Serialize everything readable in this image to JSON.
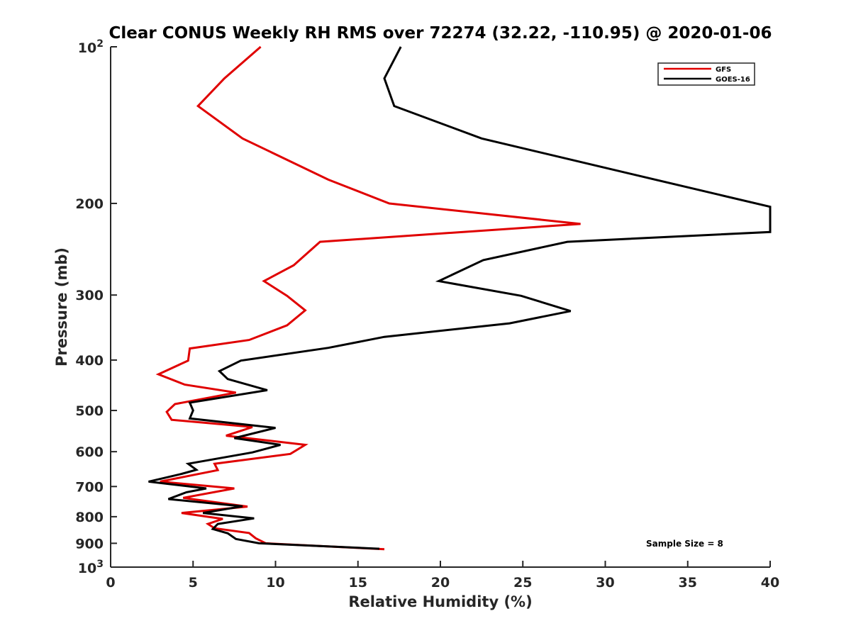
{
  "chart_data": {
    "type": "line",
    "title": "Clear CONUS Weekly RH RMS over 72274 (32.22, -110.95) @ 2020-01-06",
    "xlabel": "Relative Humidity (%)",
    "ylabel": "Pressure (mb)",
    "xlim": [
      0,
      40
    ],
    "ylim": [
      100,
      1000
    ],
    "yscale": "log",
    "y_reversed": true,
    "xticks": [
      0,
      5,
      10,
      15,
      20,
      25,
      30,
      35,
      40
    ],
    "yticks": [
      {
        "value": 100,
        "base": "10",
        "exp": "2"
      },
      {
        "value": 200,
        "label": "200"
      },
      {
        "value": 300,
        "label": "300"
      },
      {
        "value": 400,
        "label": "400"
      },
      {
        "value": 500,
        "label": "500"
      },
      {
        "value": 600,
        "label": "600"
      },
      {
        "value": 700,
        "label": "700"
      },
      {
        "value": 800,
        "label": "800"
      },
      {
        "value": 900,
        "label": "900"
      },
      {
        "value": 1000,
        "base": "10",
        "exp": "3"
      }
    ],
    "grid": false,
    "legend_position": "top-right",
    "annotation": "Sample Size = 8",
    "series": [
      {
        "name": "GFS",
        "color": "#e00000",
        "points": [
          [
            9.1,
            100
          ],
          [
            6.9,
            115
          ],
          [
            5.3,
            130
          ],
          [
            8.0,
            150
          ],
          [
            13.2,
            180
          ],
          [
            16.9,
            200
          ],
          [
            28.5,
            219
          ],
          [
            12.7,
            237
          ],
          [
            11.1,
            263
          ],
          [
            9.3,
            282
          ],
          [
            10.7,
            301
          ],
          [
            11.8,
            321
          ],
          [
            10.7,
            343
          ],
          [
            8.4,
            366
          ],
          [
            4.8,
            380
          ],
          [
            4.7,
            401
          ],
          [
            2.9,
            426
          ],
          [
            4.5,
            446
          ],
          [
            7.6,
            462
          ],
          [
            3.9,
            486
          ],
          [
            3.4,
            503
          ],
          [
            3.7,
            521
          ],
          [
            8.6,
            538
          ],
          [
            7.0,
            559
          ],
          [
            11.8,
            582
          ],
          [
            10.9,
            606
          ],
          [
            6.3,
            633
          ],
          [
            6.5,
            651
          ],
          [
            3.0,
            685
          ],
          [
            7.5,
            706
          ],
          [
            4.4,
            736
          ],
          [
            8.3,
            765
          ],
          [
            4.3,
            787
          ],
          [
            6.8,
            808
          ],
          [
            5.9,
            826
          ],
          [
            6.3,
            842
          ],
          [
            8.4,
            860
          ],
          [
            8.8,
            880
          ],
          [
            9.4,
            900
          ],
          [
            16.6,
            924
          ]
        ]
      },
      {
        "name": "GOES-16",
        "color": "#000000",
        "points": [
          [
            17.6,
            100
          ],
          [
            16.6,
            115
          ],
          [
            17.2,
            130
          ],
          [
            22.5,
            150
          ],
          [
            29.7,
            170
          ],
          [
            40.0,
            203
          ],
          [
            40.0,
            227
          ],
          [
            27.7,
            237
          ],
          [
            22.6,
            257
          ],
          [
            19.9,
            282
          ],
          [
            24.9,
            301
          ],
          [
            27.9,
            322
          ],
          [
            24.2,
            340
          ],
          [
            16.6,
            361
          ],
          [
            13.2,
            379
          ],
          [
            7.9,
            401
          ],
          [
            6.6,
            420
          ],
          [
            7.1,
            435
          ],
          [
            9.5,
            457
          ],
          [
            4.8,
            483
          ],
          [
            5.0,
            500
          ],
          [
            4.8,
            518
          ],
          [
            10.0,
            540
          ],
          [
            7.5,
            565
          ],
          [
            10.3,
            582
          ],
          [
            8.6,
            602
          ],
          [
            4.7,
            633
          ],
          [
            5.2,
            650
          ],
          [
            4.3,
            662
          ],
          [
            2.3,
            685
          ],
          [
            5.8,
            706
          ],
          [
            4.6,
            718
          ],
          [
            3.5,
            740
          ],
          [
            8.0,
            764
          ],
          [
            5.6,
            787
          ],
          [
            8.7,
            806
          ],
          [
            6.5,
            826
          ],
          [
            6.2,
            845
          ],
          [
            7.1,
            861
          ],
          [
            7.6,
            883
          ],
          [
            9.0,
            900
          ],
          [
            16.3,
            922
          ]
        ]
      }
    ]
  }
}
